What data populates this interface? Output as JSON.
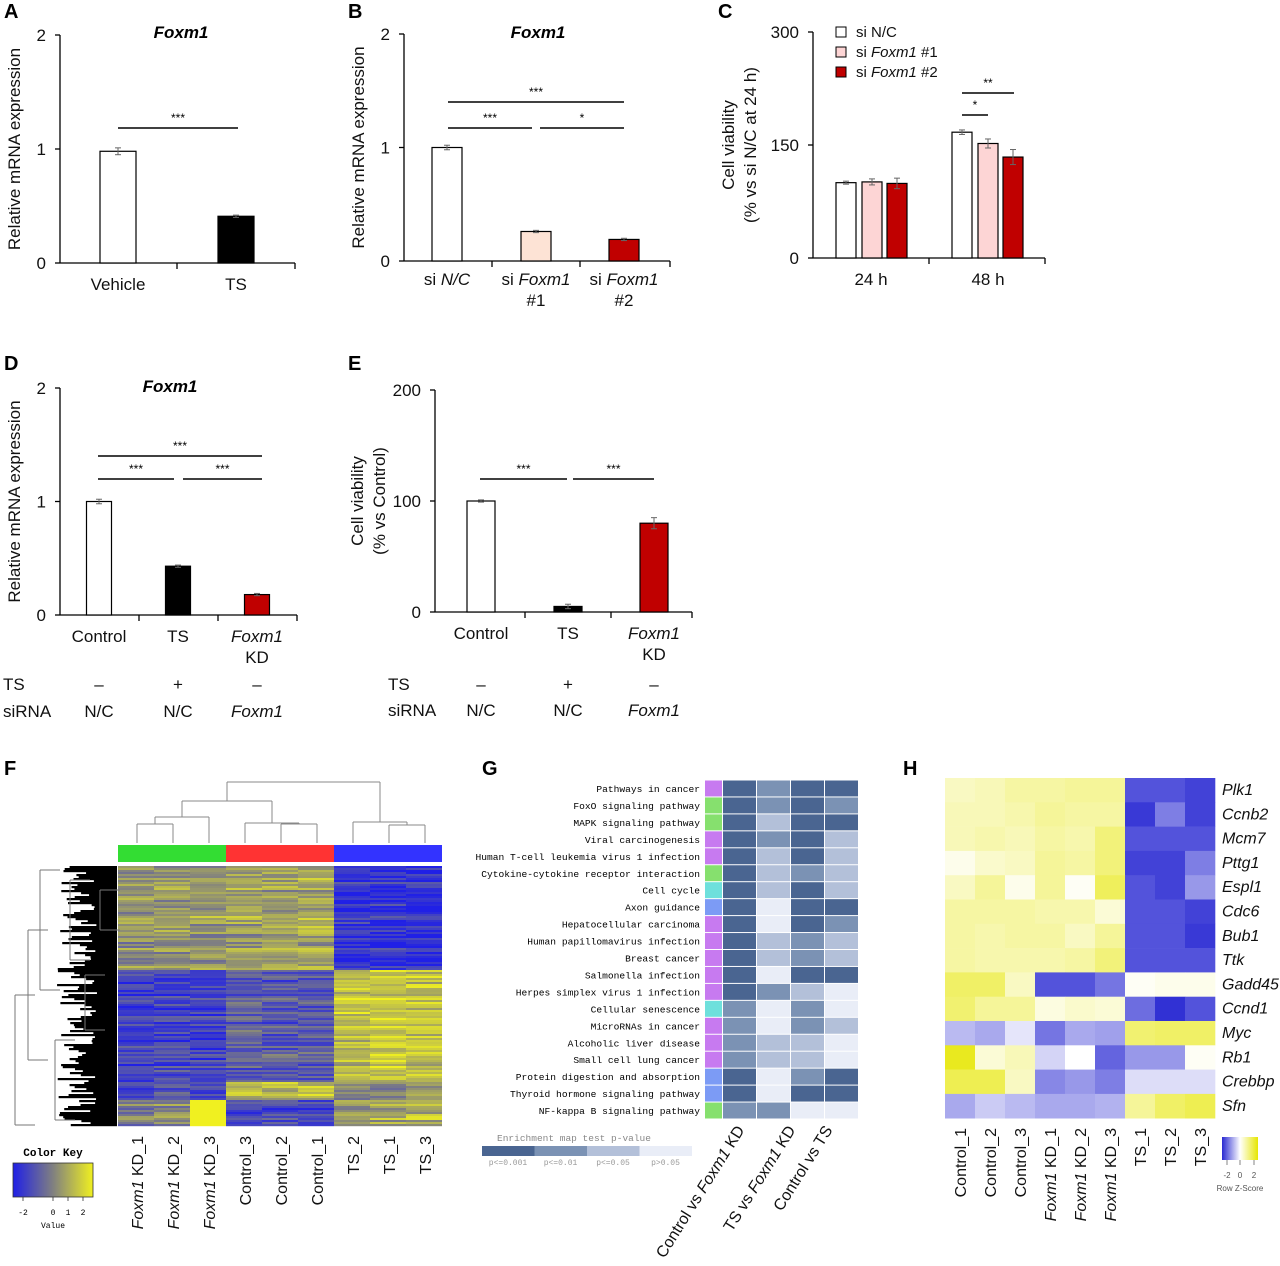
{
  "panels": [
    "A",
    "B",
    "C",
    "D",
    "E",
    "F",
    "G",
    "H"
  ],
  "chart_data": [
    {
      "panel": "A",
      "type": "bar",
      "title": "Foxm1",
      "ylabel": [
        "Relative mRNA expression"
      ],
      "ylim": [
        0,
        2
      ],
      "yticks": [
        "0",
        "1",
        "2"
      ],
      "categories": [
        [
          "Vehicle"
        ],
        [
          "TS"
        ]
      ],
      "values": [
        0.98,
        0.41
      ],
      "errors": [
        0.03,
        0.01
      ],
      "colors": [
        "#ffffff",
        "#000000"
      ],
      "significance": [
        {
          "from": 0,
          "to": 1,
          "label": "***"
        }
      ]
    },
    {
      "panel": "B",
      "type": "bar",
      "title": "Foxm1",
      "ylabel": [
        "Relative mRNA expression"
      ],
      "ylim": [
        0,
        2
      ],
      "yticks": [
        "0",
        "1",
        "2"
      ],
      "categories": [
        [
          "si N/C"
        ],
        [
          "si Foxm1",
          "#1"
        ],
        [
          "si Foxm1",
          "#2"
        ]
      ],
      "italic_terms": [
        "Foxm1",
        "N/C"
      ],
      "values": [
        1.0,
        0.26,
        0.19
      ],
      "errors": [
        0.02,
        0.01,
        0.01
      ],
      "colors": [
        "#ffffff",
        "#fde3d5",
        "#c00000"
      ],
      "significance": [
        {
          "from": 0,
          "to": 2,
          "label": "***"
        },
        {
          "from": 0,
          "to": 1,
          "label": "***"
        },
        {
          "from": 1,
          "to": 2,
          "label": "*"
        }
      ]
    },
    {
      "panel": "C",
      "type": "bar",
      "grouped": true,
      "ylabel": [
        "Cell viability",
        "(% vs si N/C at 24 h)"
      ],
      "ylim": [
        0,
        300
      ],
      "yticks": [
        "0",
        "150",
        "300"
      ],
      "categories": [
        "24 h",
        "48 h"
      ],
      "italic_terms": [
        "Foxm1"
      ],
      "legend_position": "top-left",
      "series": [
        {
          "name": "si N/C",
          "values": [
            100,
            167
          ],
          "errors": [
            2,
            3
          ],
          "color": "#ffffff"
        },
        {
          "name": "si Foxm1 #1",
          "values": [
            101,
            152
          ],
          "errors": [
            4,
            6
          ],
          "color": "#fdd5d5"
        },
        {
          "name": "si Foxm1 #2",
          "values": [
            99,
            134
          ],
          "errors": [
            7,
            10
          ],
          "color": "#c00000"
        }
      ],
      "significance": [
        {
          "group": 1,
          "from": 0,
          "to": 1,
          "label": "*"
        },
        {
          "group": 1,
          "from": 0,
          "to": 2,
          "label": "**"
        }
      ]
    },
    {
      "panel": "D",
      "type": "bar",
      "title": "Foxm1",
      "ylabel": [
        "Relative mRNA expression"
      ],
      "ylim": [
        0,
        2
      ],
      "yticks": [
        "0",
        "1",
        "2"
      ],
      "categories": [
        [
          "Control"
        ],
        [
          "TS"
        ],
        [
          "Foxm1",
          "KD"
        ]
      ],
      "italic_terms": [
        "Foxm1"
      ],
      "values": [
        1.0,
        0.43,
        0.18
      ],
      "errors": [
        0.02,
        0.01,
        0.01
      ],
      "colors": [
        "#ffffff",
        "#000000",
        "#c00000"
      ],
      "significance": [
        {
          "from": 0,
          "to": 2,
          "label": "***"
        },
        {
          "from": 0,
          "to": 1,
          "label": "***"
        },
        {
          "from": 1,
          "to": 2,
          "label": "***"
        }
      ],
      "conditions": [
        {
          "label": "TS",
          "values": [
            "–",
            "+",
            "–"
          ]
        },
        {
          "label": "siRNA",
          "values": [
            "N/C",
            "N/C",
            "Foxm1"
          ]
        }
      ]
    },
    {
      "panel": "E",
      "type": "bar",
      "ylabel": [
        "Cell viability",
        "(% vs Control)"
      ],
      "ylim": [
        0,
        200
      ],
      "yticks": [
        "0",
        "100",
        "200"
      ],
      "categories": [
        [
          "Control"
        ],
        [
          "TS"
        ],
        [
          "Foxm1",
          "KD"
        ]
      ],
      "italic_terms": [
        "Foxm1"
      ],
      "values": [
        100,
        5,
        80
      ],
      "errors": [
        1,
        2,
        5
      ],
      "colors": [
        "#ffffff",
        "#000000",
        "#c00000"
      ],
      "significance": [
        {
          "from": 0,
          "to": 1,
          "label": "***"
        },
        {
          "from": 1,
          "to": 2,
          "label": "***"
        }
      ],
      "conditions": [
        {
          "label": "TS",
          "values": [
            "–",
            "+",
            "–"
          ]
        },
        {
          "label": "siRNA",
          "values": [
            "N/C",
            "N/C",
            "Foxm1"
          ]
        }
      ]
    },
    {
      "panel": "F",
      "type": "heatmap",
      "columns": [
        "Foxm1 KD_1",
        "Foxm1 KD_2",
        "Foxm1 KD_3",
        "Control_3",
        "Control_2",
        "Control_1",
        "TS_2",
        "TS_1",
        "TS_3"
      ],
      "italic_terms": [
        "Foxm1"
      ],
      "column_group_colors": [
        "#33dd33",
        "#33dd33",
        "#33dd33",
        "#ff3333",
        "#ff3333",
        "#ff3333",
        "#3333ff",
        "#3333ff",
        "#3333ff"
      ],
      "row_clusters": [
        {
          "share": 0.4,
          "means": [
            0.4,
            0.5,
            0.6,
            0.6,
            0.8,
            0.9,
            -2.0,
            -2.0,
            -2.1
          ]
        },
        {
          "share": 0.43,
          "means": [
            -1.6,
            -1.5,
            -1.7,
            -0.9,
            -1.0,
            -1.1,
            1.4,
            1.5,
            1.5
          ]
        },
        {
          "share": 0.07,
          "means": [
            -1.5,
            -1.4,
            -1.8,
            1.2,
            1.1,
            1.3,
            0.0,
            0.1,
            0.2
          ]
        },
        {
          "share": 0.1,
          "means": [
            -0.2,
            0.2,
            2.5,
            -1.4,
            -1.3,
            -1.6,
            1.0,
            0.9,
            1.1
          ]
        }
      ],
      "color_scale": [
        "#2020e6",
        "#808080",
        "#f0f020"
      ],
      "key": {
        "title": "Color Key",
        "ticks": [
          "-2",
          "0",
          "1",
          "2"
        ],
        "xlabel": "Value"
      }
    },
    {
      "panel": "G",
      "type": "heatmap",
      "columns": [
        "Control vs Foxm1 KD",
        "TS vs Foxm1 KD",
        "Control vs TS"
      ],
      "italic_terms": [
        "Foxm1"
      ],
      "levels": [
        "p<=0.001",
        "p<=0.01",
        "p<=0.05",
        "p>0.05"
      ],
      "level_colors": [
        "#4a6591",
        "#7b92b4",
        "#b3c0d9",
        "#e9edf7"
      ],
      "legend_title": "Enrichment map test p-value",
      "rows": [
        {
          "name": "Pathways in cancer",
          "category_color": "#c77af0",
          "values": [
            0,
            1,
            0,
            0
          ]
        },
        {
          "name": "FoxO signaling pathway",
          "category_color": "#86e06e",
          "values": [
            0,
            1,
            0,
            1
          ]
        },
        {
          "name": "MAPK signaling pathway",
          "category_color": "#86e06e",
          "values": [
            0,
            2,
            0,
            0
          ]
        },
        {
          "name": "Viral carcinogenesis",
          "category_color": "#c77af0",
          "values": [
            0,
            1,
            0,
            2
          ]
        },
        {
          "name": "Human T-cell leukemia virus 1 infection",
          "category_color": "#c77af0",
          "values": [
            0,
            2,
            0,
            2
          ]
        },
        {
          "name": "Cytokine-cytokine receptor interaction",
          "category_color": "#86e06e",
          "values": [
            0,
            2,
            1,
            2
          ]
        },
        {
          "name": "Cell cycle",
          "category_color": "#6ee0dc",
          "values": [
            0,
            2,
            0,
            2
          ]
        },
        {
          "name": "Axon guidance",
          "category_color": "#7c9bf5",
          "values": [
            0,
            3,
            0,
            0
          ]
        },
        {
          "name": "Hepatocellular carcinoma",
          "category_color": "#c77af0",
          "values": [
            0,
            3,
            0,
            1
          ]
        },
        {
          "name": "Human papillomavirus infection",
          "category_color": "#c77af0",
          "values": [
            0,
            2,
            1,
            2
          ]
        },
        {
          "name": "Breast cancer",
          "category_color": "#c77af0",
          "values": [
            0,
            2,
            1,
            2
          ]
        },
        {
          "name": "Salmonella infection",
          "category_color": "#c77af0",
          "values": [
            0,
            3,
            0,
            0
          ]
        },
        {
          "name": "Herpes simplex virus 1 infection",
          "category_color": "#c77af0",
          "values": [
            0,
            1,
            2,
            3
          ]
        },
        {
          "name": "Cellular senescence",
          "category_color": "#6ee0dc",
          "values": [
            1,
            3,
            1,
            3
          ]
        },
        {
          "name": "MicroRNAs in cancer",
          "category_color": "#c77af0",
          "values": [
            1,
            3,
            1,
            2
          ]
        },
        {
          "name": "Alcoholic liver disease",
          "category_color": "#c77af0",
          "values": [
            1,
            2,
            2,
            3
          ]
        },
        {
          "name": "Small cell lung cancer",
          "category_color": "#c77af0",
          "values": [
            1,
            2,
            2,
            3
          ]
        },
        {
          "name": "Protein digestion and absorption",
          "category_color": "#7c9bf5",
          "values": [
            0,
            3,
            1,
            0
          ]
        },
        {
          "name": "Thyroid hormone signaling pathway",
          "category_color": "#7c9bf5",
          "values": [
            0,
            3,
            0,
            0
          ]
        },
        {
          "name": "NF-kappa B signaling pathway",
          "category_color": "#86e06e",
          "values": [
            1,
            1,
            3,
            3
          ]
        }
      ]
    },
    {
      "panel": "H",
      "type": "heatmap",
      "columns": [
        "Control_1",
        "Control_2",
        "Control_3",
        "Foxm1 KD_1",
        "Foxm1 KD_2",
        "Foxm1 KD_3",
        "TS_1",
        "TS_2",
        "TS_3"
      ],
      "italic_terms": [
        "Foxm1"
      ],
      "color_scale": [
        "#2828d2",
        "#ffffff",
        "#e6e600"
      ],
      "key": {
        "ticks": [
          "-2",
          "0",
          "2"
        ],
        "xlabel": "Row Z-Score"
      },
      "rows": [
        {
          "gene": "Plk1",
          "values": [
            0.6,
            0.7,
            0.9,
            0.9,
            1.0,
            1.0,
            -2.0,
            -2.0,
            -2.2
          ]
        },
        {
          "gene": "Ccnb2",
          "values": [
            0.7,
            0.7,
            0.8,
            1.0,
            0.9,
            0.9,
            -2.3,
            -1.5,
            -2.2
          ]
        },
        {
          "gene": "Mcm7",
          "values": [
            0.7,
            0.8,
            0.7,
            0.9,
            0.8,
            1.3,
            -2.0,
            -2.0,
            -2.0
          ]
        },
        {
          "gene": "Pttg1",
          "values": [
            0.2,
            0.5,
            0.6,
            1.0,
            0.9,
            1.3,
            -2.2,
            -2.2,
            -1.5
          ]
        },
        {
          "gene": "Espl1",
          "values": [
            0.6,
            1.0,
            0.2,
            1.0,
            0.1,
            1.6,
            -2.0,
            -2.2,
            -1.2
          ]
        },
        {
          "gene": "Cdc6",
          "values": [
            0.9,
            0.9,
            0.9,
            0.8,
            0.8,
            0.4,
            -2.0,
            -2.0,
            -2.2
          ]
        },
        {
          "gene": "Bub1",
          "values": [
            0.9,
            0.8,
            0.9,
            0.9,
            0.6,
            1.0,
            -2.0,
            -2.0,
            -2.3
          ]
        },
        {
          "gene": "Ttk",
          "values": [
            0.9,
            0.8,
            0.8,
            0.8,
            0.9,
            1.3,
            -2.0,
            -2.0,
            -2.0
          ]
        },
        {
          "gene": "Gadd45",
          "values": [
            1.5,
            1.5,
            0.6,
            -2.0,
            -2.0,
            -1.6,
            0.1,
            0.2,
            0.2
          ]
        },
        {
          "gene": "Ccnd1",
          "values": [
            1.4,
            1.0,
            1.0,
            0.3,
            0.5,
            0.4,
            -1.7,
            -2.4,
            -2.0
          ]
        },
        {
          "gene": "Myc",
          "values": [
            -0.8,
            -1.0,
            -0.3,
            -1.6,
            -1.0,
            -1.1,
            1.4,
            1.5,
            1.5
          ]
        },
        {
          "gene": "Rb1",
          "values": [
            2.2,
            0.4,
            0.7,
            -0.5,
            0.0,
            -1.8,
            -1.2,
            -1.2,
            0.1
          ]
        },
        {
          "gene": "Crebbp",
          "values": [
            1.7,
            1.7,
            0.6,
            -1.4,
            -1.2,
            -1.5,
            -0.4,
            -0.4,
            -0.4
          ]
        },
        {
          "gene": "Sfn",
          "values": [
            -1.0,
            -0.6,
            -0.8,
            -1.0,
            -1.0,
            -0.9,
            1.0,
            1.5,
            1.7
          ]
        }
      ]
    }
  ]
}
